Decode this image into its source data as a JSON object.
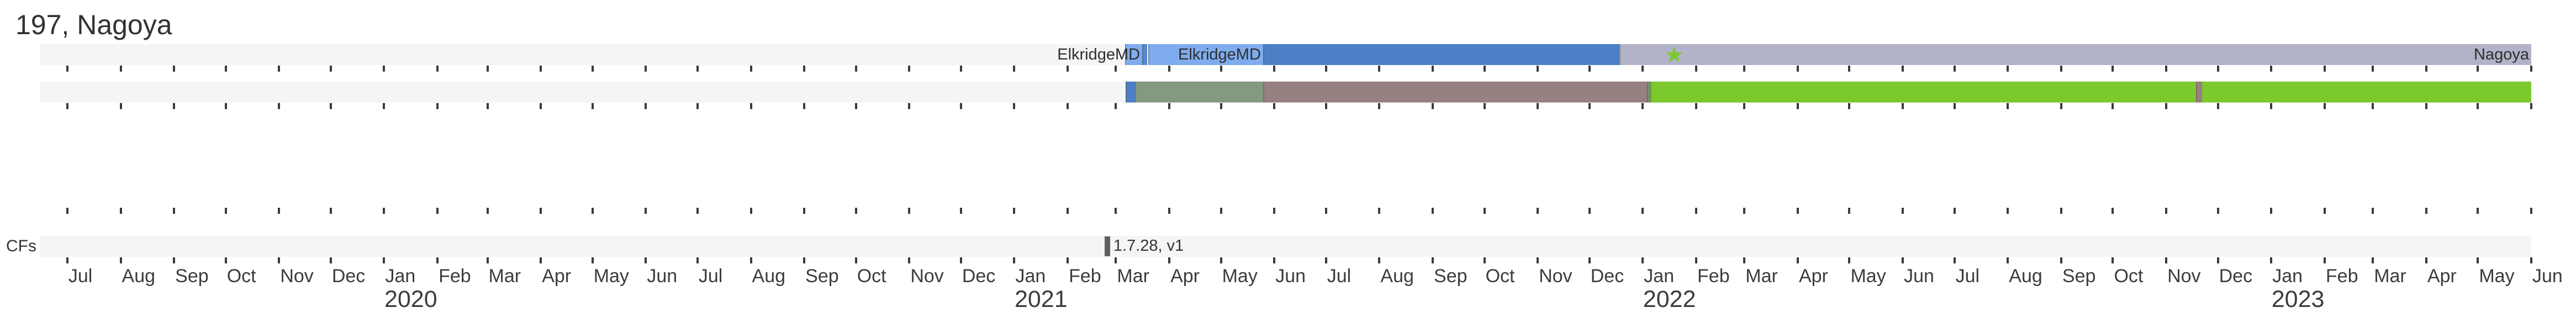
{
  "title": "197, Nagoya",
  "chart_data": {
    "type": "gantt",
    "title": "197, Nagoya",
    "grid": false,
    "legend": false,
    "axis": {
      "start": "2019-06-15",
      "end": "2023-06-01",
      "tick_interval": "month",
      "month_labels": [
        "Jul",
        "Aug",
        "Sep",
        "Oct",
        "Nov",
        "Dec",
        "Jan",
        "Feb",
        "Mar",
        "Apr",
        "May",
        "Jun",
        "Jul",
        "Aug",
        "Sep",
        "Oct",
        "Nov",
        "Dec",
        "Jan",
        "Feb",
        "Mar",
        "Apr",
        "May",
        "Jun",
        "Jul",
        "Aug",
        "Sep",
        "Oct",
        "Nov",
        "Dec",
        "Jan",
        "Feb",
        "Mar",
        "Apr",
        "May",
        "Jun",
        "Jul",
        "Aug",
        "Sep",
        "Oct",
        "Nov",
        "Dec",
        "Jan",
        "Feb",
        "Mar",
        "Apr",
        "May",
        "Jun"
      ],
      "year_labels": [
        {
          "text": "2020",
          "month_index": 6
        },
        {
          "text": "2021",
          "month_index": 18
        },
        {
          "text": "2022",
          "month_index": 30
        },
        {
          "text": "2023",
          "month_index": 42
        }
      ]
    },
    "colors": {
      "band_gray": "#f5f5f5",
      "light_blue": "#7eacee",
      "medium_blue": "#5587d2",
      "dark_blue": "#4d7fc7",
      "lavender": "#b2b2c8",
      "sage": "#839a80",
      "dark_sage": "#75926f",
      "mauve": "#988080",
      "bright_green": "#7cc92e",
      "star_green": "#7cc92e",
      "cf_gray": "#5f5f5f"
    },
    "rows": [
      {
        "id": "itinerary",
        "label": "",
        "band": true,
        "segments": [
          {
            "label": "ElkridgeMD",
            "color": "#7eacee",
            "left_pct": 43.56,
            "width_pct": 0.69,
            "start": "2021-03-06",
            "end": "2021-03-16"
          },
          {
            "label": "",
            "color": "#5587d2",
            "left_pct": 44.25,
            "width_pct": 0.2,
            "start": "2021-03-16",
            "end": "2021-03-19"
          },
          {
            "label": "ElkridgeMD",
            "color": "#7eacee",
            "left_pct": 44.49,
            "width_pct": 4.61,
            "start": "2021-03-21",
            "end": "2021-05-26"
          },
          {
            "label": "",
            "color": "#4d7fc7",
            "left_pct": 49.1,
            "width_pct": 14.3,
            "start": "2021-05-26",
            "end": "2021-12-19"
          },
          {
            "label": "Nagoya",
            "color": "#b2b2c8",
            "left_pct": 63.4,
            "width_pct": 36.6,
            "start": "2021-12-19",
            "end": "2023-06-01"
          }
        ],
        "markers": [
          {
            "shape": "star",
            "glyph": "★",
            "color": "#7cc92e",
            "x_pct": 65.6,
            "date": "2022-01-20"
          }
        ]
      },
      {
        "id": "phases",
        "label": "",
        "band": true,
        "segments": [
          {
            "label": "",
            "color": "#4d7fc7",
            "left_pct": 43.58,
            "width_pct": 0.38,
            "start": "2021-03-07",
            "end": "2021-03-12"
          },
          {
            "label": "",
            "color": "#839a80",
            "left_pct": 43.96,
            "width_pct": 5.14,
            "start": "2021-03-12",
            "end": "2021-05-26"
          },
          {
            "label": "",
            "color": "#988080",
            "left_pct": 49.1,
            "width_pct": 15.41,
            "start": "2021-05-26",
            "end": "2022-01-04"
          },
          {
            "label": "",
            "color": "#75926f",
            "left_pct": 64.51,
            "width_pct": 0.14,
            "start": "2022-01-04",
            "end": "2022-01-06"
          },
          {
            "label": "",
            "color": "#7cc92e",
            "left_pct": 64.65,
            "width_pct": 35.35,
            "start": "2022-01-06",
            "end": "2023-06-01"
          },
          {
            "label": "",
            "color": "#988080",
            "left_pct": 86.54,
            "width_pct": 0.24,
            "start": "2022-11-18",
            "end": "2022-11-21"
          }
        ],
        "markers": []
      },
      {
        "id": "spacer",
        "label": "",
        "band": false,
        "segments": [],
        "markers": []
      },
      {
        "id": "cfs",
        "label": "CFs",
        "band": true,
        "segments": [],
        "markers": [
          {
            "shape": "bar",
            "color": "#5f5f5f",
            "left_pct": 42.74,
            "width_pct": 0.22,
            "annotation": "1.7.28, v1",
            "date": "2021-02-22"
          }
        ]
      }
    ]
  }
}
